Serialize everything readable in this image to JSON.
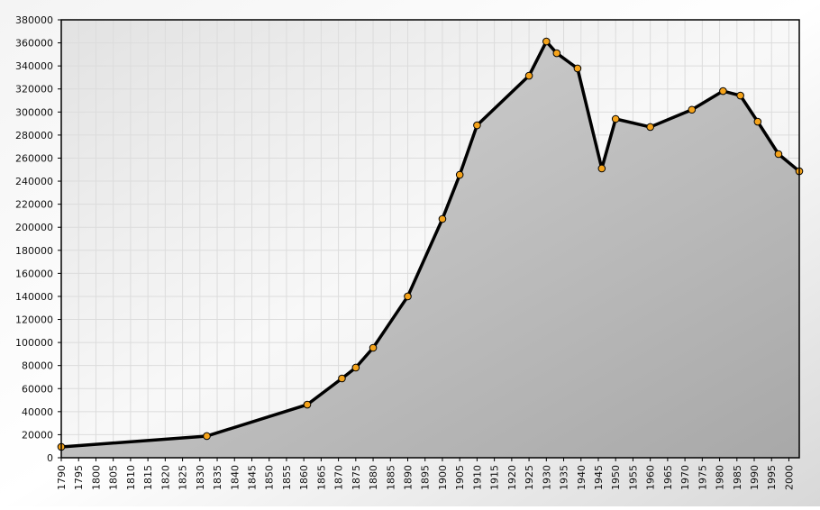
{
  "chart_data": {
    "type": "area",
    "x": [
      1790,
      1832,
      1861,
      1871,
      1875,
      1880,
      1890,
      1900,
      1905,
      1910,
      1925,
      1930,
      1933,
      1939,
      1946,
      1950,
      1960,
      1972,
      1981,
      1986,
      1991,
      1997,
      2003
    ],
    "series": [
      {
        "color": "#000000",
        "marker_color": "#f5a31a",
        "values": [
          9400,
          18800,
          46100,
          68800,
          78200,
          95400,
          140000,
          207200,
          245500,
          288500,
          331500,
          361200,
          351000,
          337800,
          251000,
          294000,
          287000,
          302000,
          318200,
          314300,
          291600,
          263500,
          248600
        ]
      }
    ],
    "xlim": [
      1790,
      2003
    ],
    "xticks": [
      1790,
      1795,
      1800,
      1805,
      1810,
      1815,
      1820,
      1825,
      1830,
      1835,
      1840,
      1845,
      1850,
      1855,
      1860,
      1865,
      1870,
      1875,
      1880,
      1885,
      1890,
      1895,
      1900,
      1905,
      1910,
      1915,
      1920,
      1925,
      1930,
      1935,
      1940,
      1945,
      1950,
      1955,
      1960,
      1965,
      1970,
      1975,
      1980,
      1985,
      1990,
      1995,
      2000
    ],
    "ylim": [
      0,
      380000
    ],
    "yticks": [
      0,
      20000,
      40000,
      60000,
      80000,
      100000,
      120000,
      140000,
      160000,
      180000,
      200000,
      220000,
      240000,
      260000,
      280000,
      300000,
      320000,
      340000,
      360000,
      380000
    ],
    "grid": true
  }
}
